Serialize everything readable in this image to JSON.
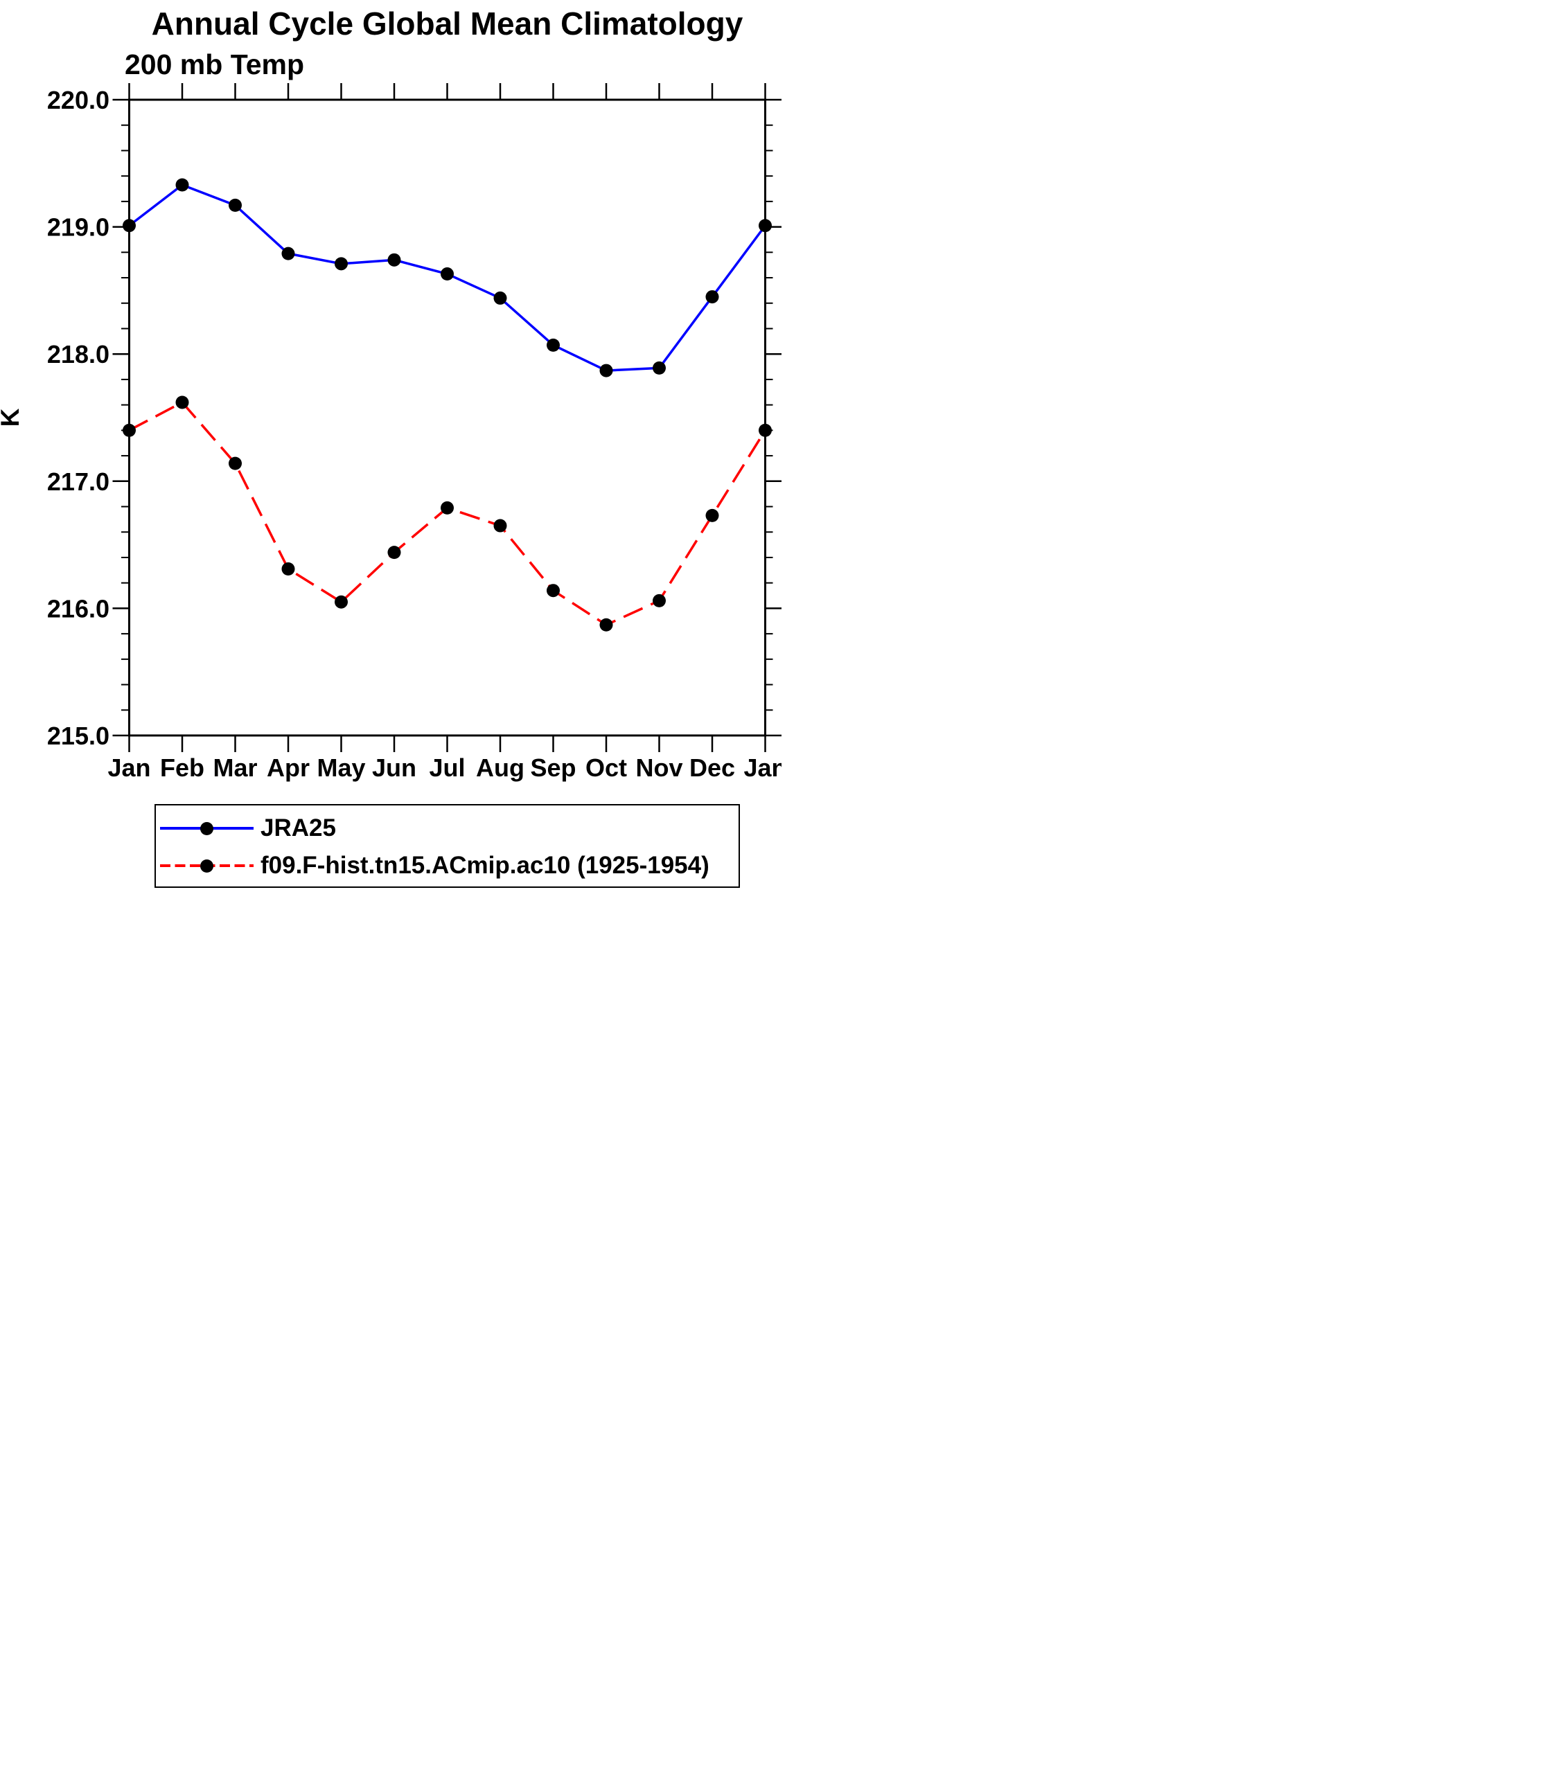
{
  "header": {
    "title": "Annual Cycle Global Mean Climatology",
    "subtitle": "200 mb Temp"
  },
  "chart_data": {
    "type": "line",
    "title": "Annual Cycle Global Mean Climatology",
    "subtitle": "200 mb Temp",
    "xlabel": "",
    "ylabel": "K",
    "categories": [
      "Jan",
      "Feb",
      "Mar",
      "Apr",
      "May",
      "Jun",
      "Jul",
      "Aug",
      "Sep",
      "Oct",
      "Nov",
      "Dec",
      "Jan"
    ],
    "series": [
      {
        "name": "JRA25",
        "color": "#0000ff",
        "line_style": "solid",
        "marker": "filled-circle",
        "marker_color": "#000000",
        "values": [
          219.01,
          219.33,
          219.17,
          218.79,
          218.71,
          218.74,
          218.63,
          218.44,
          218.07,
          217.87,
          217.89,
          218.45,
          219.01
        ]
      },
      {
        "name": "f09.F-hist.tn15.ACmip.ac10 (1925-1954)",
        "color": "#ff0000",
        "line_style": "dashed",
        "marker": "filled-circle",
        "marker_color": "#000000",
        "values": [
          217.4,
          217.62,
          217.14,
          216.31,
          216.05,
          216.44,
          216.79,
          216.65,
          216.14,
          215.87,
          216.06,
          216.73,
          217.4
        ]
      }
    ],
    "ylim": [
      215.0,
      220.0
    ],
    "ytick_major_step": 1.0,
    "ytick_minor_step": 0.2,
    "ytick_labels": [
      "220.0",
      "219.0",
      "218.0",
      "217.0",
      "216.0",
      "215.0"
    ],
    "grid": false,
    "tick_direction": "outward",
    "legend_position": "bottom"
  },
  "y_axis": {
    "title": "K"
  },
  "legend": {
    "entries": [
      {
        "label": "JRA25",
        "color": "#0000ff",
        "style": "solid"
      },
      {
        "label": "f09.F-hist.tn15.ACmip.ac10 (1925-1954)",
        "color": "#ff0000",
        "style": "dashed"
      }
    ]
  }
}
